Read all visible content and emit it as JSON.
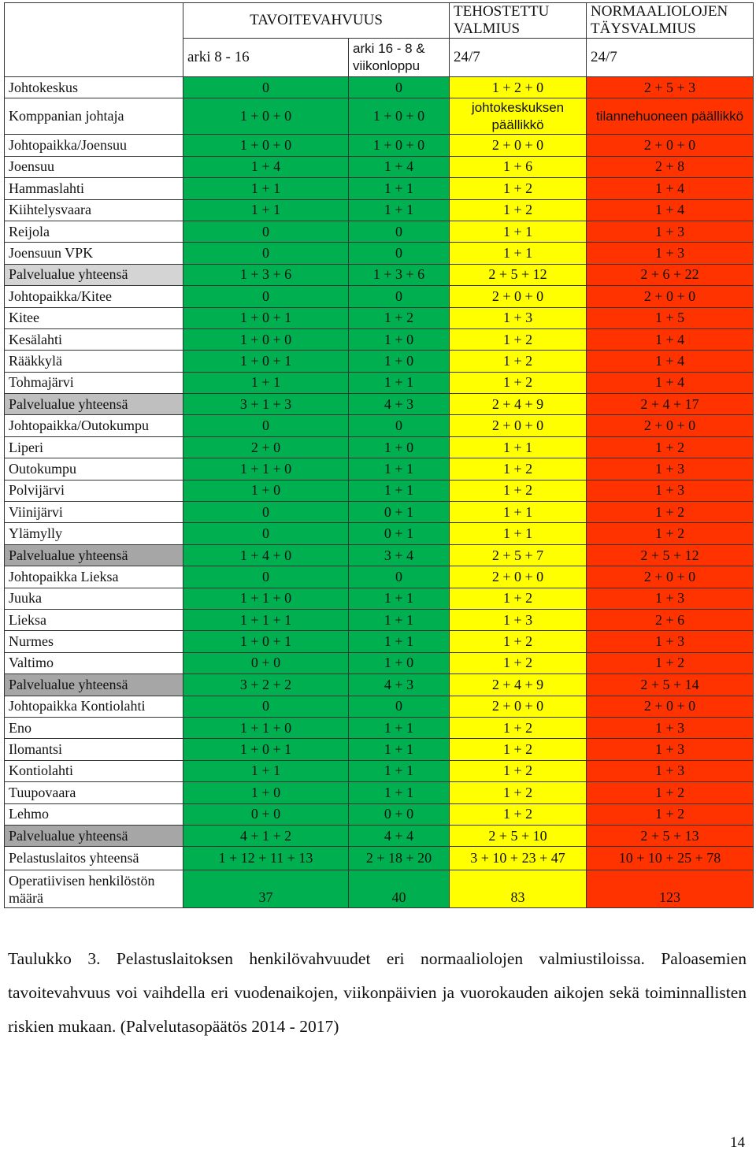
{
  "table": {
    "header": {
      "tavoite": "TAVOITEVAHVUUS",
      "tehostettu": "TEHOSTETTU VALMIUS",
      "normaali": "NORMAALIOLOJEN TÄYSVALMIUS",
      "arki": "arki 8 - 16",
      "viikonloppu": "arki 16 - 8 & viikonloppu",
      "tehostettu_time": "24/7",
      "normaali_time": "24/7"
    },
    "rows": [
      {
        "name": "Johtokeskus",
        "v": [
          "0",
          "0",
          "1 + 2 + 0",
          "2 + 5 + 3"
        ]
      },
      {
        "name": "Komppanian johtaja",
        "v": [
          "1 + 0 + 0",
          "1 + 0 + 0",
          "johtokeskuksen päällikkö",
          "tilannehuoneen päällikkö"
        ]
      },
      {
        "name": "Johtopaikka/Joensuu",
        "v": [
          "1 + 0 + 0",
          "1 + 0 + 0",
          "2 + 0 + 0",
          "2 + 0 + 0"
        ]
      },
      {
        "name": "Joensuu",
        "v": [
          "1 + 4",
          "1 + 4",
          "1 + 6",
          "2 + 8"
        ]
      },
      {
        "name": "Hammaslahti",
        "v": [
          "1 + 1",
          "1 + 1",
          "1 + 2",
          "1 + 4"
        ]
      },
      {
        "name": "Kiihtelysvaara",
        "v": [
          "1 + 1",
          "1 + 1",
          "1 + 2",
          "1 + 4"
        ]
      },
      {
        "name": "Reijola",
        "v": [
          "0",
          "0",
          "1 + 1",
          "1 + 3"
        ]
      },
      {
        "name": "Joensuun VPK",
        "v": [
          "0",
          "0",
          "1 + 1",
          "1 + 3"
        ]
      },
      {
        "name": "Palvelualue yhteensä",
        "v": [
          "1 + 3 + 6",
          "1 + 3 + 6",
          "2 + 5 + 12",
          "2 + 6 + 22"
        ]
      },
      {
        "name": "Johtopaikka/Kitee",
        "v": [
          "0",
          "0",
          "2 + 0 + 0",
          "2 + 0 + 0"
        ]
      },
      {
        "name": "Kitee",
        "v": [
          "1 + 0 + 1",
          "1 + 2",
          "1 + 3",
          "1 + 5"
        ]
      },
      {
        "name": "Kesälahti",
        "v": [
          "1 + 0 + 0",
          "1 + 0",
          "1 + 2",
          "1 + 4"
        ]
      },
      {
        "name": "Rääkkylä",
        "v": [
          "1 + 0 + 1",
          "1 + 0",
          "1 + 2",
          "1 + 4"
        ]
      },
      {
        "name": "Tohmajärvi",
        "v": [
          "1 + 1",
          "1 + 1",
          "1 + 2",
          "1 + 4"
        ]
      },
      {
        "name": "Palvelualue yhteensä",
        "v": [
          "3 + 1 + 3",
          "4 + 3",
          "2 + 4 + 9",
          "2 + 4 + 17"
        ]
      },
      {
        "name": "Johtopaikka/Outokumpu",
        "v": [
          "0",
          "0",
          "2 + 0 + 0",
          "2 + 0 + 0"
        ]
      },
      {
        "name": "Liperi",
        "v": [
          "2 + 0",
          "1 + 0",
          "1 + 1",
          "1 + 2"
        ]
      },
      {
        "name": "Outokumpu",
        "v": [
          "1 + 1 + 0",
          "1 + 1",
          "1 + 2",
          "1 + 3"
        ]
      },
      {
        "name": "Polvijärvi",
        "v": [
          "1 + 0",
          "1 + 1",
          "1 + 2",
          "1 + 3"
        ]
      },
      {
        "name": "Viinijärvi",
        "v": [
          "0",
          "0 + 1",
          "1 + 1",
          "1 + 2"
        ]
      },
      {
        "name": "Ylämylly",
        "v": [
          "0",
          "0 + 1",
          "1 + 1",
          "1 + 2"
        ]
      },
      {
        "name": "Palvelualue yhteensä",
        "v": [
          "1 + 4 + 0",
          "3 + 4",
          "2 + 5 + 7",
          "2 + 5 + 12"
        ]
      },
      {
        "name": "Johtopaikka Lieksa",
        "v": [
          "0",
          "0",
          "2 + 0 + 0",
          "2 + 0 + 0"
        ]
      },
      {
        "name": "Juuka",
        "v": [
          "1 + 1 + 0",
          "1 + 1",
          "1 + 2",
          "1 + 3"
        ]
      },
      {
        "name": "Lieksa",
        "v": [
          "1 + 1 + 1",
          "1 + 1",
          "1 + 3",
          "2 + 6"
        ]
      },
      {
        "name": "Nurmes",
        "v": [
          "1 + 0 + 1",
          "1 + 1",
          "1 + 2",
          "1 + 3"
        ]
      },
      {
        "name": "Valtimo",
        "v": [
          "0 + 0",
          "1 + 0",
          "1 + 2",
          "1 + 2"
        ]
      },
      {
        "name": "Palvelualue yhteensä",
        "v": [
          "3 + 2 + 2",
          "4 + 3",
          "2 + 4 + 9",
          "2 + 5 + 14"
        ]
      },
      {
        "name": "Johtopaikka Kontiolahti",
        "v": [
          "0",
          "0",
          "2 + 0 + 0",
          "2 + 0 + 0"
        ]
      },
      {
        "name": "Eno",
        "v": [
          "1 + 1 + 0",
          "1 + 1",
          "1 + 2",
          "1 + 3"
        ]
      },
      {
        "name": "Ilomantsi",
        "v": [
          "1 + 0 + 1",
          "1 + 1",
          "1 + 2",
          "1 + 3"
        ]
      },
      {
        "name": "Kontiolahti",
        "v": [
          "1 + 1",
          "1 + 1",
          "1 + 2",
          "1 + 3"
        ]
      },
      {
        "name": "Tuupovaara",
        "v": [
          "1 + 0",
          "1 + 1",
          "1 + 2",
          "1 + 2"
        ]
      },
      {
        "name": "Lehmo",
        "v": [
          "0 + 0",
          "0 + 0",
          "1 + 2",
          "1 + 2"
        ]
      },
      {
        "name": "Palvelualue yhteensä",
        "v": [
          "4 + 1 + 2",
          "4 + 4",
          "2 + 5 + 10",
          "2 + 5 + 13"
        ]
      }
    ],
    "total": {
      "name": "Pelastuslaitos yhteensä",
      "v": [
        "1 + 12 + 11 + 13",
        "2 + 18 + 20",
        "3 + 10 + 23 + 47",
        "10 + 10 + 25 + 78"
      ]
    },
    "personnel": {
      "name": "Operatiivisen henkilöstön määrä",
      "v": [
        "37",
        "40",
        "83",
        "123"
      ]
    }
  },
  "caption": "Taulukko 3. Pelastuslaitoksen henkilövahvuudet eri normaaliolojen valmiustiloissa. Paloasemien tavoitevahvuus voi vaihdella eri vuodenaikojen, viikonpäivien ja vuorokauden aikojen sekä toiminnallisten riskien mukaan. (Palvelutasopäätös 2014 - 2017)",
  "page_number": "14",
  "colors": {
    "tavoitevahvuus": "#00b050",
    "tehostettu": "#ffff00",
    "normaali": "#ff3300",
    "subtotal_1": "#d4d4d4",
    "subtotal_2": "#bfbfbf",
    "subtotal_3": "#a6a6a6"
  }
}
